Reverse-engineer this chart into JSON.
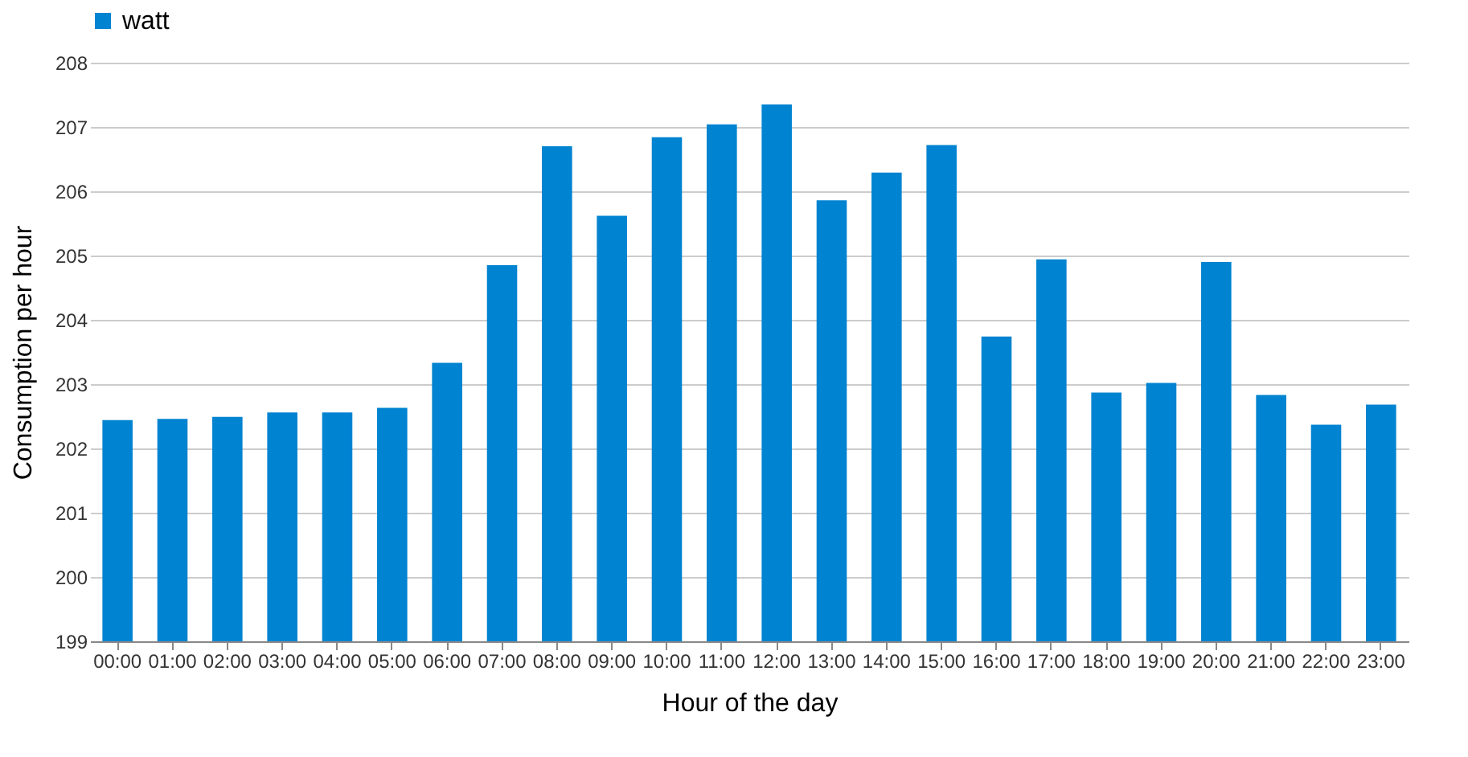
{
  "chart_data": {
    "type": "bar",
    "xlabel": "Hour of the day",
    "ylabel": "Consumption per hour",
    "categories": [
      "00:00",
      "01:00",
      "02:00",
      "03:00",
      "04:00",
      "05:00",
      "06:00",
      "07:00",
      "08:00",
      "09:00",
      "10:00",
      "11:00",
      "12:00",
      "13:00",
      "14:00",
      "15:00",
      "16:00",
      "17:00",
      "18:00",
      "19:00",
      "20:00",
      "21:00",
      "22:00",
      "23:00"
    ],
    "series": [
      {
        "name": "watt",
        "color": "#0083d0",
        "values": [
          202.44,
          202.46,
          202.49,
          202.56,
          202.56,
          202.63,
          203.33,
          204.85,
          206.7,
          205.62,
          206.84,
          207.04,
          207.35,
          205.86,
          206.29,
          206.72,
          203.74,
          204.94,
          202.87,
          203.02,
          204.9,
          202.83,
          202.37,
          202.68
        ]
      }
    ],
    "ylim": [
      199,
      208
    ],
    "yticks": [
      199,
      200,
      201,
      202,
      203,
      204,
      205,
      206,
      207,
      208
    ],
    "grid": "y",
    "legend": "top"
  }
}
